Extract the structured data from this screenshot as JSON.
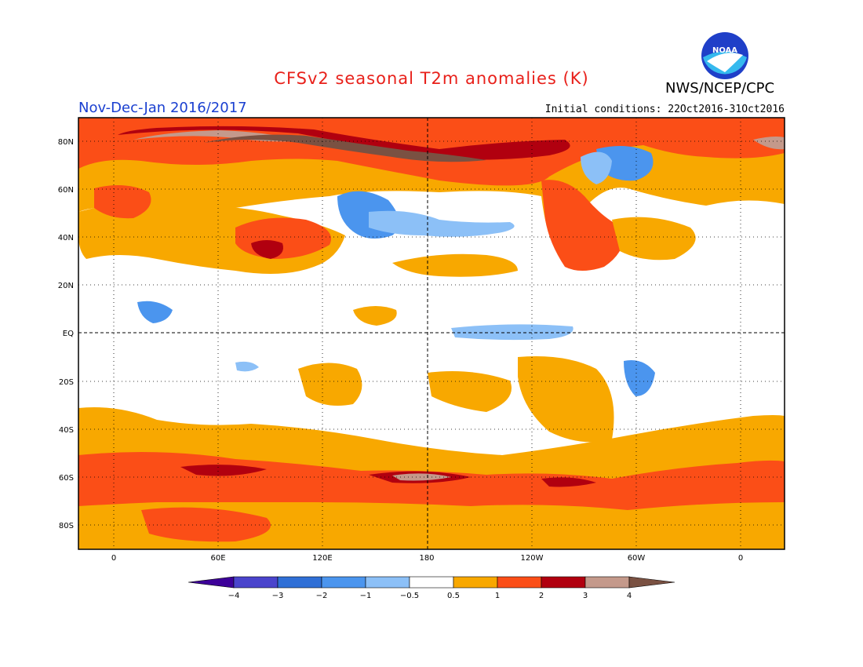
{
  "title": "CFSv2 seasonal T2m anomalies (K)",
  "organization": "NWS/NCEP/CPC",
  "logo_text": "NOAA",
  "period": "Nov-Dec-Jan 2016/2017",
  "initial_conditions": "Initial conditions: 22Oct2016-31Oct2016",
  "lat_labels": [
    "80N",
    "60N",
    "40N",
    "20N",
    "EQ",
    "20S",
    "40S",
    "60S",
    "80S"
  ],
  "lon_labels": [
    "0",
    "60E",
    "120E",
    "180",
    "120W",
    "60W",
    "0"
  ],
  "colorbar": {
    "colors": [
      "#3d0099",
      "#4a44cc",
      "#2f6fd6",
      "#4b95ee",
      "#8cc0f7",
      "#ffffff",
      "#f8a800",
      "#fb4e17",
      "#b1000f",
      "#c4998b",
      "#7a5142"
    ],
    "labels": [
      "-4",
      "-3",
      "-2",
      "-1",
      "-0.5",
      "0.5",
      "1",
      "2",
      "3",
      "4"
    ]
  },
  "colors": {
    "title": "#e8201a",
    "period": "#1a3fd0",
    "weak_warm": "#f8a800",
    "warm": "#fb4e17",
    "strong_warm": "#b1000f",
    "very_warm": "#c4998b",
    "extreme_warm": "#7a5142",
    "weak_cool": "#8cc0f7",
    "cool": "#4b95ee"
  }
}
